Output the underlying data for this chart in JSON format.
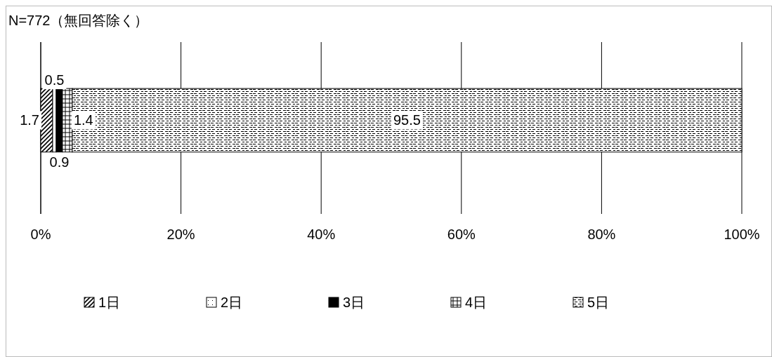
{
  "chart_data": {
    "type": "bar",
    "orientation": "horizontal",
    "stacked": true,
    "title": "N=772（無回答除く）",
    "categories": [
      null
    ],
    "series": [
      {
        "name": "1日",
        "color": "#000000",
        "values": [
          1.7
        ]
      },
      {
        "name": "2日",
        "color": "#000000",
        "values": [
          0.5
        ]
      },
      {
        "name": "3日",
        "color": "#000000",
        "values": [
          0.9
        ]
      },
      {
        "name": "4日",
        "color": "#000000",
        "values": [
          1.4
        ]
      },
      {
        "name": "5日",
        "color": "#000000",
        "values": [
          95.5
        ]
      }
    ],
    "xlim": [
      0,
      100
    ],
    "xticks": [
      {
        "value": 0,
        "label": "0%"
      },
      {
        "value": 20,
        "label": "20%"
      },
      {
        "value": 40,
        "label": "40%"
      },
      {
        "value": 60,
        "label": "60%"
      },
      {
        "value": 80,
        "label": "80%"
      },
      {
        "value": 100,
        "label": "100%"
      }
    ],
    "grid": "x",
    "legend": "bottom",
    "data_labels": true
  }
}
